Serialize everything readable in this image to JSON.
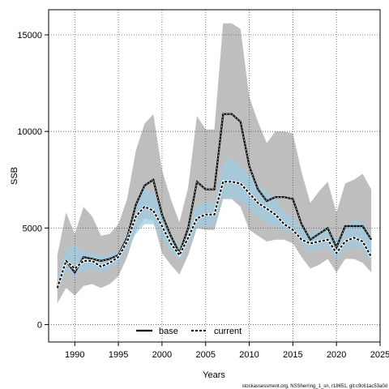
{
  "chart_data": {
    "type": "line",
    "xlabel": "Years",
    "ylabel": "SSB",
    "xlim": [
      1987,
      2025
    ],
    "ylim": [
      -900,
      16300
    ],
    "x_ticks": [
      1990,
      1995,
      2000,
      2005,
      2010,
      2015,
      2020,
      2025
    ],
    "y_ticks": [
      0,
      5000,
      10000,
      15000
    ],
    "grid": true,
    "legend_position": "bottom-center",
    "footer": "stockassessment.org, NSSherring_1_sn, r18651, git:c9c61ac53a0d",
    "x": [
      1988,
      1989,
      1990,
      1991,
      1992,
      1993,
      1994,
      1995,
      1996,
      1997,
      1998,
      1999,
      2000,
      2001,
      2002,
      2003,
      2004,
      2005,
      2006,
      2007,
      2008,
      2009,
      2010,
      2011,
      2012,
      2013,
      2014,
      2015,
      2016,
      2017,
      2018,
      2019,
      2020,
      2021,
      2022,
      2023,
      2024
    ],
    "series": [
      {
        "name": "base",
        "color": "#000000",
        "band_color": "#bebebe",
        "line_style": "solid",
        "values": [
          2000,
          3300,
          2700,
          3500,
          3400,
          3300,
          3400,
          3600,
          4500,
          6200,
          7200,
          7500,
          5700,
          4600,
          3700,
          5000,
          7400,
          7000,
          7000,
          10900,
          10900,
          10500,
          8200,
          7000,
          6400,
          6600,
          6600,
          6500,
          5200,
          4400,
          4700,
          5000,
          4000,
          5100,
          5100,
          5100,
          4400
        ],
        "lower": [
          1100,
          1900,
          1500,
          2000,
          2100,
          1900,
          2100,
          2500,
          3500,
          4900,
          5500,
          5400,
          3700,
          3100,
          2600,
          3600,
          5000,
          4900,
          4900,
          6500,
          6500,
          6100,
          4900,
          4600,
          4300,
          4400,
          4400,
          4200,
          3500,
          2900,
          3100,
          3400,
          2700,
          3400,
          3400,
          3200,
          2700
        ],
        "upper": [
          3600,
          5800,
          4700,
          6100,
          5600,
          4600,
          4700,
          5200,
          6500,
          9000,
          10400,
          10900,
          8000,
          6500,
          5300,
          7100,
          10800,
          10100,
          10100,
          15600,
          15600,
          15300,
          11800,
          10500,
          9400,
          10000,
          10000,
          9900,
          7900,
          6300,
          6900,
          7400,
          5800,
          7300,
          7500,
          7800,
          7000
        ]
      },
      {
        "name": "current",
        "color": "#000000",
        "band_color": "#9fcbe0",
        "line_style": "dashed",
        "values": [
          1900,
          3300,
          2900,
          3300,
          3300,
          3000,
          3200,
          3500,
          4300,
          5600,
          6100,
          5900,
          5100,
          4200,
          3600,
          4500,
          5500,
          5700,
          5700,
          7400,
          7400,
          7300,
          6800,
          6300,
          6000,
          5700,
          5200,
          4900,
          4400,
          4200,
          4300,
          4400,
          3700,
          4300,
          4500,
          4300,
          3500
        ],
        "lower": [
          1700,
          2800,
          2500,
          2800,
          2900,
          2700,
          2900,
          3200,
          3900,
          4700,
          5200,
          5200,
          4400,
          3800,
          3300,
          4100,
          5000,
          5100,
          5100,
          6600,
          6500,
          6400,
          5900,
          5600,
          5300,
          5100,
          4900,
          4700,
          4200,
          3800,
          3900,
          4000,
          3300,
          3900,
          4000,
          3900,
          3100
        ],
        "upper": [
          2400,
          3900,
          4100,
          3800,
          3700,
          3600,
          3600,
          3800,
          4800,
          6300,
          7100,
          6800,
          5900,
          4700,
          4000,
          5000,
          6200,
          6300,
          6300,
          8400,
          8600,
          8200,
          7700,
          7200,
          6900,
          6500,
          5800,
          5500,
          5000,
          4700,
          4900,
          5000,
          4300,
          5000,
          5400,
          5300,
          4300
        ]
      }
    ]
  }
}
